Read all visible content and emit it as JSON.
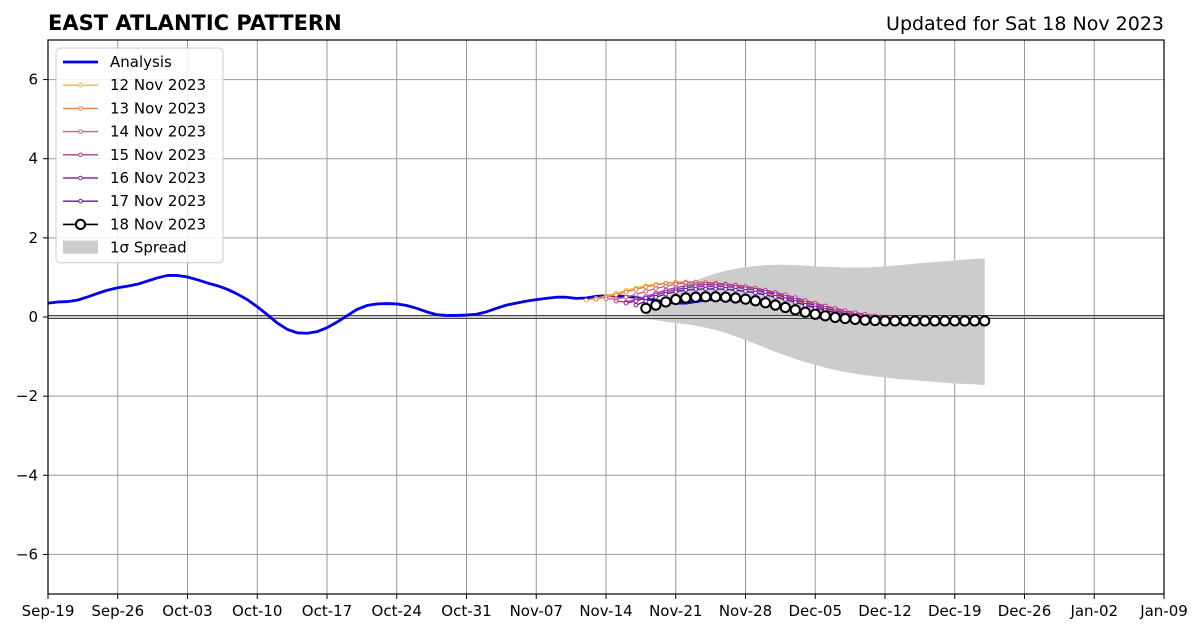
{
  "chart_data": {
    "type": "line",
    "title": "EAST ATLANTIC PATTERN",
    "subtitle": "Updated for Sat 18 Nov 2023",
    "xlabel": "",
    "ylabel": "",
    "x_range": [
      "2023-09-19",
      "2024-01-09"
    ],
    "ylim": [
      -7,
      7
    ],
    "x_ticks": [
      "Sep-19",
      "Sep-26",
      "Oct-03",
      "Oct-10",
      "Oct-17",
      "Oct-24",
      "Oct-31",
      "Nov-07",
      "Nov-14",
      "Nov-21",
      "Nov-28",
      "Dec-05",
      "Dec-12",
      "Dec-19",
      "Dec-26",
      "Jan-02",
      "Jan-09"
    ],
    "y_ticks": [
      6,
      4,
      2,
      0,
      -2,
      -4,
      -6
    ],
    "y_tick_labels": [
      "6",
      "4",
      "2",
      "0",
      "−2",
      "−4",
      "−6"
    ],
    "grid": true,
    "legend_position": "top-left",
    "analysis": {
      "name": "Analysis",
      "color": "#0000ee",
      "start": "2023-09-19",
      "values": [
        0.35,
        0.38,
        0.39,
        0.43,
        0.51,
        0.6,
        0.68,
        0.74,
        0.78,
        0.83,
        0.91,
        0.99,
        1.05,
        1.05,
        1.01,
        0.94,
        0.86,
        0.79,
        0.7,
        0.58,
        0.44,
        0.26,
        0.06,
        -0.15,
        -0.31,
        -0.4,
        -0.41,
        -0.37,
        -0.27,
        -0.13,
        0.03,
        0.19,
        0.29,
        0.33,
        0.34,
        0.33,
        0.29,
        0.22,
        0.13,
        0.06,
        0.04,
        0.04,
        0.05,
        0.07,
        0.13,
        0.22,
        0.3,
        0.35,
        0.4,
        0.44,
        0.47,
        0.5,
        0.5,
        0.47,
        0.48,
        0.52,
        0.54,
        0.53,
        0.52,
        0.49,
        0.46,
        0.42,
        0.38,
        0.35,
        0.35,
        0.39,
        0.43,
        0.45,
        0.44,
        0.42,
        0.4
      ]
    },
    "forecasts": [
      {
        "name": "12 Nov 2023",
        "color": "#f5b432",
        "start": "2023-11-12",
        "values": [
          0.42,
          0.47,
          0.53,
          0.6,
          0.67,
          0.73,
          0.79,
          0.83,
          0.86,
          0.88,
          0.89,
          0.89,
          0.88,
          0.86,
          0.83,
          0.79,
          0.74,
          0.68,
          0.62,
          0.55,
          0.48,
          0.41,
          0.34,
          0.27,
          0.21,
          0.15,
          0.1,
          0.06,
          0.02,
          0.0,
          -0.02,
          -0.03
        ]
      },
      {
        "name": "13 Nov 2023",
        "color": "#e8844a",
        "start": "2023-11-13",
        "values": [
          0.45,
          0.5,
          0.56,
          0.63,
          0.7,
          0.76,
          0.81,
          0.85,
          0.87,
          0.88,
          0.88,
          0.87,
          0.85,
          0.82,
          0.78,
          0.73,
          0.67,
          0.61,
          0.54,
          0.47,
          0.4,
          0.33,
          0.26,
          0.2,
          0.15,
          0.1,
          0.06,
          0.03,
          0.0,
          -0.02,
          -0.03
        ]
      },
      {
        "name": "14 Nov 2023",
        "color": "#d4607a",
        "start": "2023-11-14",
        "values": [
          0.46,
          0.45,
          0.5,
          0.57,
          0.65,
          0.72,
          0.78,
          0.83,
          0.86,
          0.87,
          0.87,
          0.86,
          0.84,
          0.81,
          0.77,
          0.72,
          0.66,
          0.6,
          0.53,
          0.46,
          0.39,
          0.32,
          0.25,
          0.19,
          0.14,
          0.09,
          0.05,
          0.02,
          -0.01,
          -0.03,
          -0.04
        ]
      },
      {
        "name": "15 Nov 2023",
        "color": "#b03a8a",
        "start": "2023-11-15",
        "values": [
          0.4,
          0.38,
          0.44,
          0.52,
          0.6,
          0.68,
          0.74,
          0.79,
          0.82,
          0.83,
          0.83,
          0.82,
          0.8,
          0.77,
          0.73,
          0.68,
          0.62,
          0.56,
          0.49,
          0.42,
          0.35,
          0.28,
          0.22,
          0.16,
          0.11,
          0.07,
          0.03,
          0.0,
          -0.03,
          -0.05
        ]
      },
      {
        "name": "16 Nov 2023",
        "color": "#8a28a8",
        "start": "2023-11-16",
        "values": [
          0.35,
          0.4,
          0.48,
          0.56,
          0.63,
          0.69,
          0.74,
          0.77,
          0.78,
          0.78,
          0.77,
          0.75,
          0.72,
          0.68,
          0.63,
          0.57,
          0.5,
          0.43,
          0.36,
          0.29,
          0.22,
          0.16,
          0.1,
          0.05,
          0.01,
          -0.02,
          -0.05,
          -0.07,
          -0.08
        ]
      },
      {
        "name": "17 Nov 2023",
        "color": "#5a1aa0",
        "start": "2023-11-17",
        "values": [
          0.3,
          0.4,
          0.5,
          0.58,
          0.64,
          0.68,
          0.7,
          0.71,
          0.71,
          0.7,
          0.68,
          0.65,
          0.61,
          0.56,
          0.5,
          0.44,
          0.37,
          0.3,
          0.23,
          0.17,
          0.11,
          0.06,
          0.02,
          -0.02,
          -0.05,
          -0.07,
          -0.09,
          -0.1
        ]
      },
      {
        "name": "18 Nov 2023",
        "color": "#000000",
        "start": "2023-11-18",
        "values": [
          0.22,
          0.3,
          0.38,
          0.44,
          0.48,
          0.5,
          0.51,
          0.51,
          0.5,
          0.48,
          0.45,
          0.41,
          0.36,
          0.3,
          0.24,
          0.18,
          0.12,
          0.07,
          0.03,
          -0.01,
          -0.04,
          -0.06,
          -0.08,
          -0.09,
          -0.1,
          -0.1,
          -0.1,
          -0.1,
          -0.1,
          -0.1,
          -0.1,
          -0.1,
          -0.1,
          -0.1,
          -0.1
        ]
      }
    ],
    "spread": {
      "name": "1σ Spread",
      "color": "#cccccc",
      "start": "2023-11-18",
      "upper": [
        0.2,
        0.35,
        0.5,
        0.65,
        0.8,
        0.92,
        1.02,
        1.1,
        1.17,
        1.22,
        1.26,
        1.29,
        1.31,
        1.32,
        1.32,
        1.31,
        1.3,
        1.28,
        1.27,
        1.26,
        1.25,
        1.25,
        1.25,
        1.26,
        1.28,
        1.3,
        1.32,
        1.35,
        1.37,
        1.39,
        1.41,
        1.43,
        1.45,
        1.47,
        1.48
      ],
      "lower": [
        -0.05,
        -0.08,
        -0.12,
        -0.15,
        -0.18,
        -0.22,
        -0.27,
        -0.33,
        -0.4,
        -0.49,
        -0.58,
        -0.68,
        -0.78,
        -0.88,
        -0.97,
        -1.06,
        -1.14,
        -1.21,
        -1.28,
        -1.34,
        -1.39,
        -1.43,
        -1.47,
        -1.5,
        -1.53,
        -1.56,
        -1.58,
        -1.6,
        -1.62,
        -1.64,
        -1.66,
        -1.68,
        -1.69,
        -1.7,
        -1.72
      ]
    }
  }
}
